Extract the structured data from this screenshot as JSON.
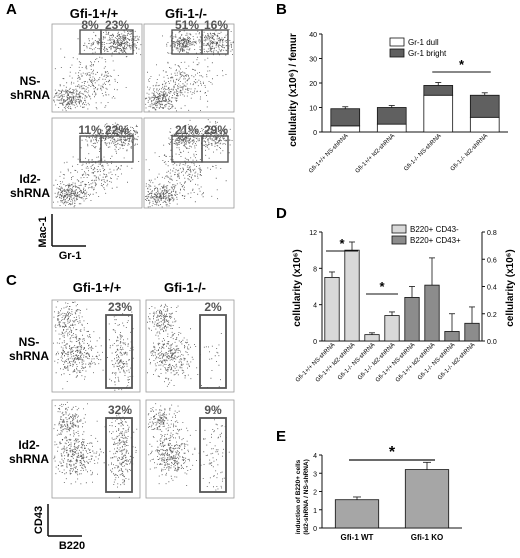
{
  "figure": {
    "panels": {
      "A": "A",
      "B": "B",
      "C": "C",
      "D": "D",
      "E": "E"
    }
  },
  "panelA": {
    "col_headers": [
      "Gfi-1+/+",
      "Gfi-1-/-"
    ],
    "row_labels": [
      [
        "NS-",
        "shRNA"
      ],
      [
        "Id2-",
        "shRNA"
      ]
    ],
    "gates": [
      [
        "8%",
        "23%"
      ],
      [
        "51%",
        "16%"
      ],
      [
        "11%",
        "22%"
      ],
      [
        "21%",
        "29%"
      ]
    ],
    "y_axis": "Mac-1",
    "x_axis": "Gr-1"
  },
  "panelC": {
    "col_headers": [
      "Gfi-1+/+",
      "Gfi-1-/-"
    ],
    "row_labels": [
      [
        "NS-",
        "shRNA"
      ],
      [
        "Id2-",
        "shRNA"
      ]
    ],
    "gates": [
      "23%",
      "2%",
      "32%",
      "9%"
    ],
    "y_axis": "CD43",
    "x_axis": "B220"
  },
  "chart_data": [
    {
      "panel": "B",
      "type": "bar",
      "stacked": true,
      "categories": [
        "Gfi-1+/+ NS-shRNA",
        "Gfi-1+/+ Id2-shRNA",
        "Gfi-1-/- NS-shRNA",
        "Gfi-1-/- Id2-shRNA"
      ],
      "series": [
        {
          "name": "Gr-1 dull",
          "color": "#ffffff",
          "values": [
            2.5,
            3.2,
            15.0,
            6.0
          ],
          "errors": [
            0.6,
            0.6,
            1.5,
            1.0
          ]
        },
        {
          "name": "Gr-1 bright",
          "color": "#606060",
          "values": [
            7.0,
            6.8,
            4.0,
            9.0
          ],
          "errors": [
            0.8,
            0.8,
            1.2,
            1.0
          ]
        }
      ],
      "ylabel": "cellularity (x10⁶) / femur",
      "ylim": [
        0,
        40
      ],
      "yticks": [
        0,
        10,
        20,
        30,
        40
      ],
      "significance": [
        {
          "between": [
            2,
            3
          ],
          "label": "*"
        }
      ],
      "legend": "top-right"
    },
    {
      "panel": "D",
      "type": "bar",
      "categories_left": [
        "Gfi-1+/+ NS-shRNA",
        "Gfi-1+/+ Id2-shRNA",
        "Gfi-1-/- NS-shRNA",
        "Gfi-1-/- Id2-shRNA"
      ],
      "categories_right": [
        "Gfi-1+/+ NS-shRNA",
        "Gfi-1+/+ Id2-shRNA",
        "Gfi-1-/- NS-shRNA",
        "Gfi-1-/- Id2-shRNA"
      ],
      "series": [
        {
          "name": "B220+ CD43-",
          "color": "#d9d9d9",
          "axis": "left",
          "values": [
            7.0,
            10.0,
            0.7,
            2.8
          ],
          "errors": [
            0.6,
            0.9,
            0.2,
            0.4
          ]
        },
        {
          "name": "B220+ CD43+",
          "color": "#8c8c8c",
          "axis": "right",
          "values": [
            0.32,
            0.41,
            0.07,
            0.13
          ],
          "errors": [
            0.08,
            0.2,
            0.13,
            0.12
          ]
        }
      ],
      "ylabel": "cellularity (x10⁶)",
      "ylabel_right": "cellularity (x10⁶)",
      "ylim": [
        0,
        12
      ],
      "yticks": [
        0,
        4,
        8,
        12
      ],
      "ylim_right": [
        0,
        0.8
      ],
      "yticks_right": [
        "0.0",
        "0.2",
        "0.4",
        "0.6",
        "0.8"
      ],
      "significance": [
        {
          "between": [
            0,
            1
          ],
          "label": "*"
        },
        {
          "between": [
            2,
            3
          ],
          "label": "*"
        }
      ],
      "legend": "top-right"
    },
    {
      "panel": "E",
      "type": "bar",
      "categories": [
        "Gfi-1 WT",
        "Gfi-1 KO"
      ],
      "values": [
        1.55,
        3.2
      ],
      "errors": [
        0.15,
        0.4
      ],
      "color": "#a6a6a6",
      "ylabel": [
        "induction of B220+ cells",
        "(Id2-shRNA / NS-shRNA)"
      ],
      "ylim": [
        0,
        4
      ],
      "yticks": [
        0,
        1,
        2,
        3,
        4
      ],
      "significance": [
        {
          "between": [
            0,
            1
          ],
          "label": "*"
        }
      ]
    }
  ]
}
